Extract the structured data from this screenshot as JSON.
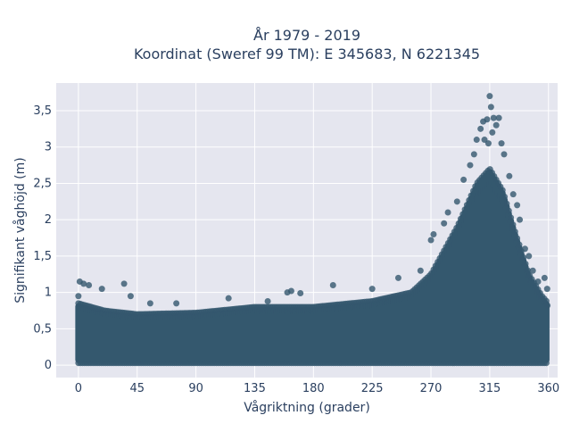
{
  "chart_data": {
    "type": "scatter",
    "title_line1": "År 1979 - 2019",
    "title_line2": "Koordinat (Sweref 99 TM): E 345683, N 6221345",
    "xlabel": "Vågriktning (grader)",
    "ylabel": "Signifikant våghöjd (m)",
    "xlim": [
      -17,
      367
    ],
    "ylim": [
      -0.17,
      3.88
    ],
    "x_ticks": [
      0,
      45,
      90,
      135,
      180,
      225,
      270,
      315,
      360
    ],
    "x_tick_labels": [
      "0",
      "45",
      "90",
      "135",
      "180",
      "225",
      "270",
      "315",
      "360"
    ],
    "y_ticks": [
      0,
      0.5,
      1,
      1.5,
      2,
      2.5,
      3,
      3.5
    ],
    "y_tick_labels": [
      "0",
      "0,5",
      "1",
      "1,5",
      "2",
      "2,5",
      "3",
      "3,5"
    ],
    "grid": true,
    "colors": {
      "marker": "#34586e",
      "plot_background": "#e5e6ef",
      "grid": "#ffffff"
    },
    "series": [
      {
        "marker_opacity": 0.8,
        "dense_envelope": [
          {
            "direction": 0,
            "height": 0.85
          },
          {
            "direction": 20,
            "height": 0.75
          },
          {
            "direction": 45,
            "height": 0.7
          },
          {
            "direction": 90,
            "height": 0.72
          },
          {
            "direction": 135,
            "height": 0.8
          },
          {
            "direction": 180,
            "height": 0.8
          },
          {
            "direction": 225,
            "height": 0.88
          },
          {
            "direction": 255,
            "height": 1.0
          },
          {
            "direction": 270,
            "height": 1.25
          },
          {
            "direction": 290,
            "height": 1.9
          },
          {
            "direction": 305,
            "height": 2.5
          },
          {
            "direction": 315,
            "height": 2.7
          },
          {
            "direction": 325,
            "height": 2.4
          },
          {
            "direction": 335,
            "height": 1.8
          },
          {
            "direction": 345,
            "height": 1.25
          },
          {
            "direction": 355,
            "height": 0.95
          },
          {
            "direction": 360,
            "height": 0.85
          }
        ],
        "outliers": [
          {
            "direction": 1,
            "height": 1.15
          },
          {
            "direction": 4,
            "height": 1.12
          },
          {
            "direction": 8,
            "height": 1.1
          },
          {
            "direction": 0,
            "height": 0.95
          },
          {
            "direction": 18,
            "height": 1.05
          },
          {
            "direction": 35,
            "height": 1.12
          },
          {
            "direction": 40,
            "height": 0.95
          },
          {
            "direction": 55,
            "height": 0.85
          },
          {
            "direction": 75,
            "height": 0.85
          },
          {
            "direction": 115,
            "height": 0.92
          },
          {
            "direction": 145,
            "height": 0.88
          },
          {
            "direction": 160,
            "height": 1.0
          },
          {
            "direction": 163,
            "height": 1.02
          },
          {
            "direction": 170,
            "height": 0.99
          },
          {
            "direction": 195,
            "height": 1.1
          },
          {
            "direction": 225,
            "height": 1.05
          },
          {
            "direction": 245,
            "height": 1.2
          },
          {
            "direction": 262,
            "height": 1.3
          },
          {
            "direction": 270,
            "height": 1.72
          },
          {
            "direction": 272,
            "height": 1.8
          },
          {
            "direction": 280,
            "height": 1.95
          },
          {
            "direction": 283,
            "height": 2.1
          },
          {
            "direction": 290,
            "height": 2.25
          },
          {
            "direction": 295,
            "height": 2.55
          },
          {
            "direction": 300,
            "height": 2.75
          },
          {
            "direction": 303,
            "height": 2.9
          },
          {
            "direction": 305,
            "height": 3.1
          },
          {
            "direction": 308,
            "height": 3.25
          },
          {
            "direction": 310,
            "height": 3.35
          },
          {
            "direction": 311,
            "height": 3.1
          },
          {
            "direction": 313,
            "height": 3.38
          },
          {
            "direction": 314,
            "height": 3.05
          },
          {
            "direction": 315,
            "height": 3.7
          },
          {
            "direction": 316,
            "height": 3.55
          },
          {
            "direction": 317,
            "height": 3.2
          },
          {
            "direction": 318,
            "height": 3.4
          },
          {
            "direction": 320,
            "height": 3.3
          },
          {
            "direction": 322,
            "height": 3.4
          },
          {
            "direction": 324,
            "height": 3.05
          },
          {
            "direction": 326,
            "height": 2.9
          },
          {
            "direction": 330,
            "height": 2.6
          },
          {
            "direction": 333,
            "height": 2.35
          },
          {
            "direction": 336,
            "height": 2.2
          },
          {
            "direction": 338,
            "height": 2.0
          },
          {
            "direction": 342,
            "height": 1.6
          },
          {
            "direction": 345,
            "height": 1.5
          },
          {
            "direction": 348,
            "height": 1.3
          },
          {
            "direction": 352,
            "height": 1.15
          },
          {
            "direction": 357,
            "height": 1.2
          },
          {
            "direction": 359,
            "height": 1.05
          }
        ]
      }
    ]
  }
}
